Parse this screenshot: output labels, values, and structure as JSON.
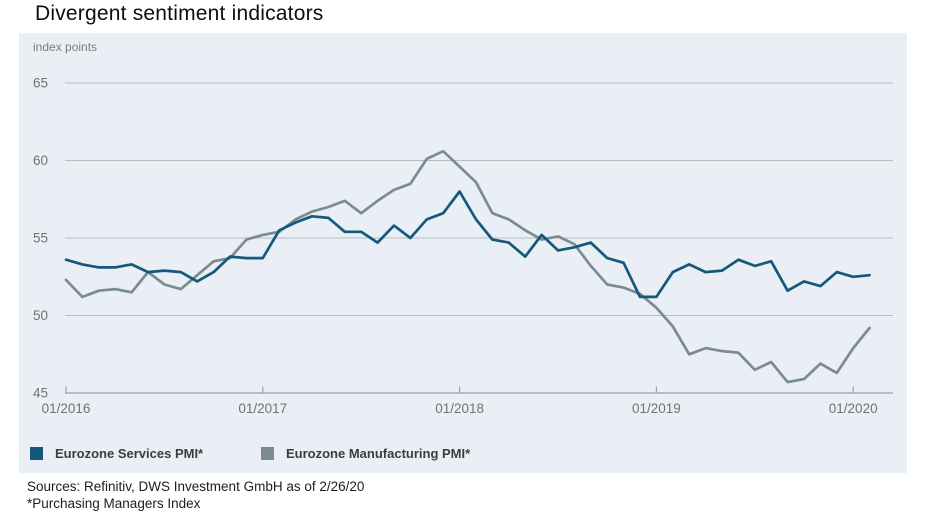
{
  "title": "Divergent sentiment indicators",
  "panel": {
    "unit_label": "index points"
  },
  "footer": {
    "sources": "Sources: Refinitiv, DWS Investment GmbH as of 2/26/20",
    "note": "*Purchasing Managers Index"
  },
  "colors": {
    "panel_bg": "#eaeff5",
    "gridline": "#b7bcc1",
    "axis": "#9aa0a6",
    "axis_text": "#6f7377",
    "services_blue": "#15587c",
    "manufacturing_gray": "#7a8b92"
  },
  "chart_data": {
    "type": "line",
    "title": "Divergent sentiment indicators",
    "ylabel": "index points",
    "xlabel": "",
    "ylim": [
      45,
      65
    ],
    "grid": true,
    "legend_position": "bottom",
    "x": [
      "01/2016",
      "02/2016",
      "03/2016",
      "04/2016",
      "05/2016",
      "06/2016",
      "07/2016",
      "08/2016",
      "09/2016",
      "10/2016",
      "11/2016",
      "12/2016",
      "01/2017",
      "02/2017",
      "03/2017",
      "04/2017",
      "05/2017",
      "06/2017",
      "07/2017",
      "08/2017",
      "09/2017",
      "10/2017",
      "11/2017",
      "12/2017",
      "01/2018",
      "02/2018",
      "03/2018",
      "04/2018",
      "05/2018",
      "06/2018",
      "07/2018",
      "08/2018",
      "09/2018",
      "10/2018",
      "11/2018",
      "12/2018",
      "01/2019",
      "02/2019",
      "03/2019",
      "04/2019",
      "05/2019",
      "06/2019",
      "07/2019",
      "08/2019",
      "09/2019",
      "10/2019",
      "11/2019",
      "12/2019",
      "01/2020",
      "02/2020"
    ],
    "x_tick_labels": [
      "01/2016",
      "01/2017",
      "01/2018",
      "01/2019",
      "01/2020"
    ],
    "x_tick_indices": [
      0,
      12,
      24,
      36,
      48
    ],
    "y_ticks": [
      65,
      60,
      55,
      50,
      45
    ],
    "series": [
      {
        "name": "Eurozone Services PMI*",
        "color": "#15587c",
        "values": [
          53.6,
          53.3,
          53.1,
          53.1,
          53.3,
          52.8,
          52.9,
          52.8,
          52.2,
          52.8,
          53.8,
          53.7,
          53.7,
          55.5,
          56.0,
          56.4,
          56.3,
          55.4,
          55.4,
          54.7,
          55.8,
          55.0,
          56.2,
          56.6,
          58.0,
          56.2,
          54.9,
          54.7,
          53.8,
          55.2,
          54.2,
          54.4,
          54.7,
          53.7,
          53.4,
          51.2,
          51.2,
          52.8,
          53.3,
          52.8,
          52.9,
          53.6,
          53.2,
          53.5,
          51.6,
          52.2,
          51.9,
          52.8,
          52.5,
          52.6
        ]
      },
      {
        "name": "Eurozone Manufacturing PMI*",
        "color": "#7a8b92",
        "values": [
          52.3,
          51.2,
          51.6,
          51.7,
          51.5,
          52.8,
          52.0,
          51.7,
          52.6,
          53.5,
          53.7,
          54.9,
          55.2,
          55.4,
          56.2,
          56.7,
          57.0,
          57.4,
          56.6,
          57.4,
          58.1,
          58.5,
          60.1,
          60.6,
          59.6,
          58.6,
          56.6,
          56.2,
          55.5,
          54.9,
          55.1,
          54.6,
          53.2,
          52.0,
          51.8,
          51.4,
          50.5,
          49.3,
          47.5,
          47.9,
          47.7,
          47.6,
          46.5,
          47.0,
          45.7,
          45.9,
          46.9,
          46.3,
          47.9,
          49.2
        ]
      }
    ]
  }
}
